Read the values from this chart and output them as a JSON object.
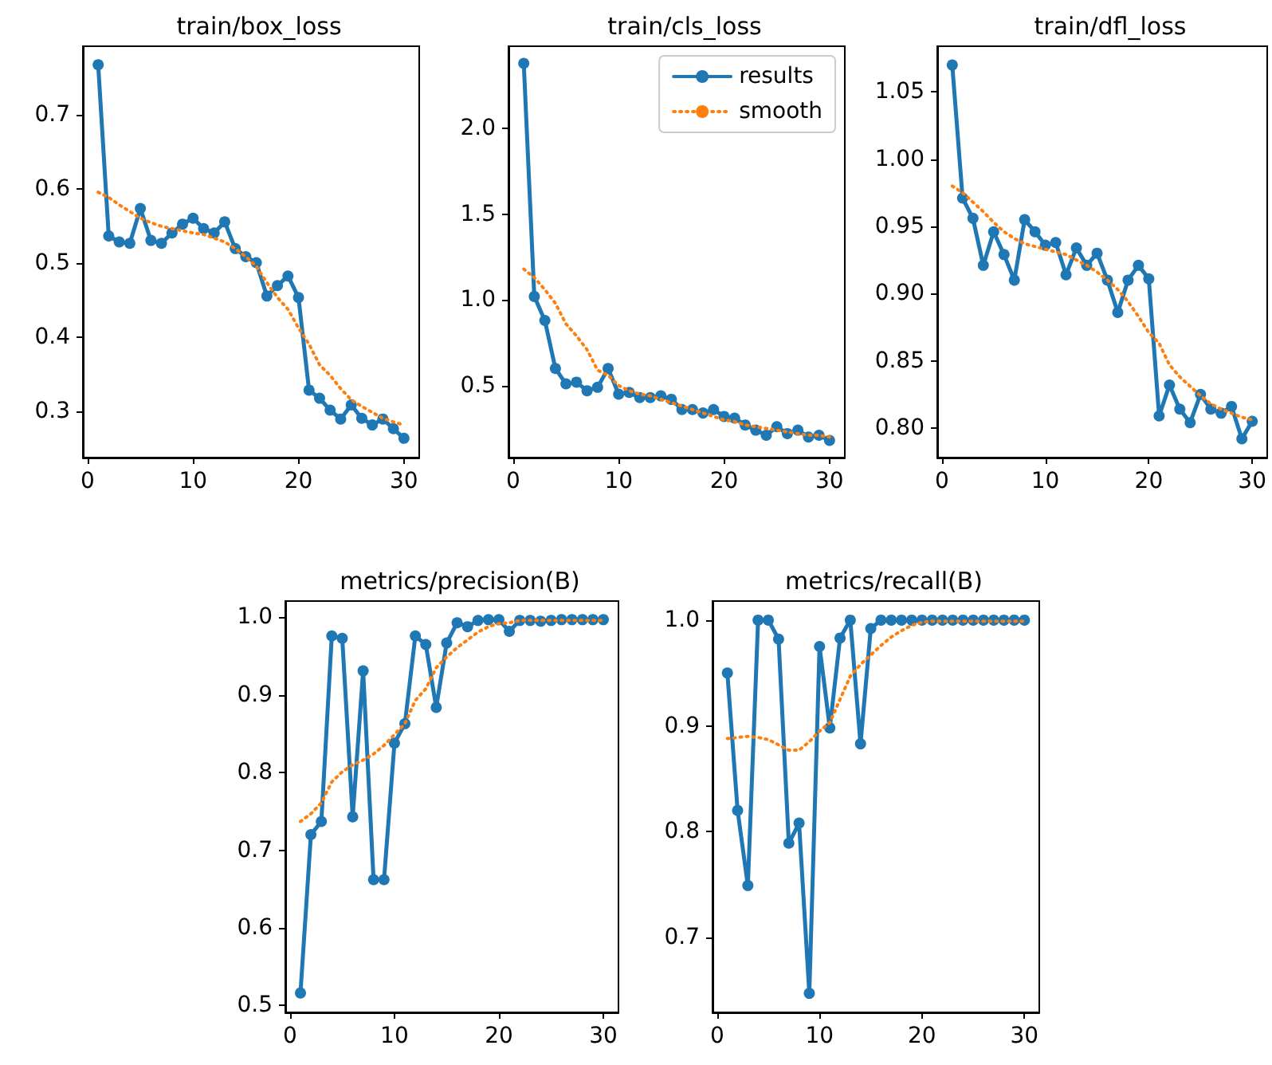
{
  "chart_data": [
    {
      "type": "line",
      "title": "train/box_loss",
      "x": [
        1,
        2,
        3,
        4,
        5,
        6,
        7,
        8,
        9,
        10,
        11,
        12,
        13,
        14,
        15,
        16,
        17,
        18,
        19,
        20,
        21,
        22,
        23,
        24,
        25,
        26,
        27,
        28,
        29,
        30
      ],
      "xlim": [
        -0.45,
        31.45
      ],
      "xticks": [
        0,
        10,
        20,
        30
      ],
      "ylim": [
        0.238,
        0.793
      ],
      "yticks": [
        0.3,
        0.4,
        0.5,
        0.6,
        0.7
      ],
      "grid": false,
      "legend": false,
      "series": [
        {
          "color": "#1f77b4",
          "marker": "circle",
          "line_style": "solid",
          "values": [
            0.768,
            0.537,
            0.529,
            0.527,
            0.574,
            0.531,
            0.527,
            0.541,
            0.553,
            0.561,
            0.547,
            0.541,
            0.556,
            0.52,
            0.509,
            0.501,
            0.456,
            0.47,
            0.483,
            0.454,
            0.329,
            0.318,
            0.302,
            0.29,
            0.309,
            0.291,
            0.282,
            0.29,
            0.277,
            0.264
          ]
        },
        {
          "color": "#ff7f0e",
          "marker": "none",
          "line_style": "dotted",
          "values": [
            0.596,
            0.589,
            0.579,
            0.57,
            0.561,
            0.555,
            0.55,
            0.547,
            0.544,
            0.541,
            0.539,
            0.534,
            0.529,
            0.52,
            0.509,
            0.496,
            0.474,
            0.454,
            0.438,
            0.413,
            0.391,
            0.363,
            0.349,
            0.331,
            0.316,
            0.307,
            0.299,
            0.291,
            0.286,
            0.282
          ]
        }
      ]
    },
    {
      "type": "line",
      "title": "train/cls_loss",
      "x": [
        1,
        2,
        3,
        4,
        5,
        6,
        7,
        8,
        9,
        10,
        11,
        12,
        13,
        14,
        15,
        16,
        17,
        18,
        19,
        20,
        21,
        22,
        23,
        24,
        25,
        26,
        27,
        28,
        29,
        30
      ],
      "xlim": [
        -0.45,
        31.45
      ],
      "xticks": [
        0,
        10,
        20,
        30
      ],
      "ylim": [
        0.08,
        2.48
      ],
      "yticks": [
        0.5,
        {
          "value": 1,
          "label": "1.0"
        },
        1.5,
        {
          "value": 2,
          "label": "2.0"
        }
      ],
      "grid": false,
      "legend": "top right",
      "series": [
        {
          "name": "results",
          "color": "#1f77b4",
          "marker": "circle",
          "line_style": "solid",
          "values": [
            2.38,
            1.02,
            0.88,
            0.6,
            0.51,
            0.52,
            0.47,
            0.49,
            0.6,
            0.45,
            0.46,
            0.43,
            0.43,
            0.44,
            0.42,
            0.36,
            0.36,
            0.34,
            0.36,
            0.32,
            0.31,
            0.27,
            0.24,
            0.21,
            0.26,
            0.22,
            0.24,
            0.2,
            0.21,
            0.18
          ]
        },
        {
          "name": "smooth",
          "color": "#ff7f0e",
          "marker": "none",
          "line_style": "dotted",
          "values": [
            1.18,
            1.13,
            1.06,
            0.98,
            0.86,
            0.79,
            0.71,
            0.59,
            0.56,
            0.5,
            0.47,
            0.45,
            0.44,
            0.42,
            0.4,
            0.38,
            0.36,
            0.34,
            0.32,
            0.3,
            0.29,
            0.27,
            0.26,
            0.25,
            0.24,
            0.23,
            0.22,
            0.21,
            0.21,
            0.2
          ]
        }
      ]
    },
    {
      "type": "line",
      "title": "train/dfl_loss",
      "x": [
        1,
        2,
        3,
        4,
        5,
        6,
        7,
        8,
        9,
        10,
        11,
        12,
        13,
        14,
        15,
        16,
        17,
        18,
        19,
        20,
        21,
        22,
        23,
        24,
        25,
        26,
        27,
        28,
        29,
        30
      ],
      "xlim": [
        -0.45,
        31.45
      ],
      "xticks": [
        0,
        10,
        20,
        30
      ],
      "ylim": [
        0.778,
        1.084
      ],
      "yticks": [
        {
          "value": 0.8,
          "label": "0.80"
        },
        {
          "value": 0.85,
          "label": "0.85"
        },
        {
          "value": 0.9,
          "label": "0.90"
        },
        {
          "value": 0.95,
          "label": "0.95"
        },
        {
          "value": 1,
          "label": "1.00"
        },
        {
          "value": 1.05,
          "label": "1.05"
        }
      ],
      "grid": false,
      "legend": false,
      "series": [
        {
          "color": "#1f77b4",
          "marker": "circle",
          "line_style": "solid",
          "values": [
            1.07,
            0.971,
            0.956,
            0.921,
            0.946,
            0.929,
            0.91,
            0.955,
            0.946,
            0.936,
            0.938,
            0.914,
            0.934,
            0.921,
            0.93,
            0.91,
            0.886,
            0.91,
            0.921,
            0.911,
            0.809,
            0.832,
            0.814,
            0.804,
            0.825,
            0.814,
            0.811,
            0.816,
            0.792,
            0.805
          ]
        },
        {
          "color": "#ff7f0e",
          "marker": "none",
          "line_style": "dotted",
          "values": [
            0.98,
            0.975,
            0.968,
            0.961,
            0.953,
            0.946,
            0.941,
            0.937,
            0.935,
            0.933,
            0.931,
            0.929,
            0.925,
            0.921,
            0.916,
            0.91,
            0.903,
            0.894,
            0.883,
            0.871,
            0.863,
            0.847,
            0.838,
            0.831,
            0.824,
            0.818,
            0.814,
            0.811,
            0.808,
            0.806
          ]
        }
      ]
    },
    {
      "type": "line",
      "title": "metrics/precision(B)",
      "x": [
        1,
        2,
        3,
        4,
        5,
        6,
        7,
        8,
        9,
        10,
        11,
        12,
        13,
        14,
        15,
        16,
        17,
        18,
        19,
        20,
        21,
        22,
        23,
        24,
        25,
        26,
        27,
        28,
        29,
        30
      ],
      "xlim": [
        -0.45,
        31.45
      ],
      "xticks": [
        0,
        10,
        20,
        30
      ],
      "ylim": [
        0.491,
        1.021
      ],
      "yticks": [
        0.5,
        0.6,
        0.7,
        0.8,
        0.9,
        {
          "value": 1,
          "label": "1.0"
        }
      ],
      "grid": false,
      "legend": false,
      "series": [
        {
          "color": "#1f77b4",
          "marker": "circle",
          "line_style": "solid",
          "values": [
            0.516,
            0.72,
            0.737,
            0.976,
            0.973,
            0.743,
            0.931,
            0.662,
            0.662,
            0.838,
            0.863,
            0.976,
            0.965,
            0.884,
            0.967,
            0.993,
            0.988,
            0.996,
            0.997,
            0.997,
            0.982,
            0.996,
            0.996,
            0.995,
            0.996,
            0.997,
            0.997,
            0.997,
            0.997,
            0.997
          ]
        },
        {
          "color": "#ff7f0e",
          "marker": "none",
          "line_style": "dotted",
          "values": [
            0.737,
            0.747,
            0.761,
            0.788,
            0.801,
            0.81,
            0.816,
            0.824,
            0.835,
            0.849,
            0.863,
            0.893,
            0.908,
            0.935,
            0.949,
            0.961,
            0.971,
            0.981,
            0.988,
            0.992,
            0.993,
            0.996,
            0.996,
            0.996,
            0.996,
            0.996,
            0.996,
            0.996,
            0.996,
            0.996
          ]
        }
      ]
    },
    {
      "type": "line",
      "title": "metrics/recall(B)",
      "x": [
        1,
        2,
        3,
        4,
        5,
        6,
        7,
        8,
        9,
        10,
        11,
        12,
        13,
        14,
        15,
        16,
        17,
        18,
        19,
        20,
        21,
        22,
        23,
        24,
        25,
        26,
        27,
        28,
        29,
        30
      ],
      "xlim": [
        -0.45,
        31.45
      ],
      "xticks": [
        0,
        10,
        20,
        30
      ],
      "ylim": [
        0.629,
        1.018
      ],
      "yticks": [
        0.7,
        0.8,
        0.9,
        {
          "value": 1,
          "label": "1.0"
        }
      ],
      "grid": false,
      "legend": false,
      "series": [
        {
          "color": "#1f77b4",
          "marker": "circle",
          "line_style": "solid",
          "values": [
            0.95,
            0.82,
            0.749,
            1,
            1,
            0.982,
            0.789,
            0.808,
            0.647,
            0.975,
            0.898,
            0.983,
            1,
            0.883,
            0.992,
            1,
            1,
            1,
            1,
            1,
            1,
            1,
            1,
            1,
            1,
            1,
            1,
            1,
            1,
            1
          ]
        },
        {
          "color": "#ff7f0e",
          "marker": "none",
          "line_style": "dotted",
          "values": [
            0.888,
            0.889,
            0.89,
            0.889,
            0.887,
            0.882,
            0.877,
            0.877,
            0.885,
            0.895,
            0.903,
            0.925,
            0.947,
            0.958,
            0.967,
            0.976,
            0.984,
            0.99,
            0.995,
            0.998,
            0.999,
            0.999,
            0.999,
            0.999,
            0.999,
            0.999,
            0.999,
            0.999,
            0.999,
            0.999
          ]
        }
      ]
    }
  ]
}
